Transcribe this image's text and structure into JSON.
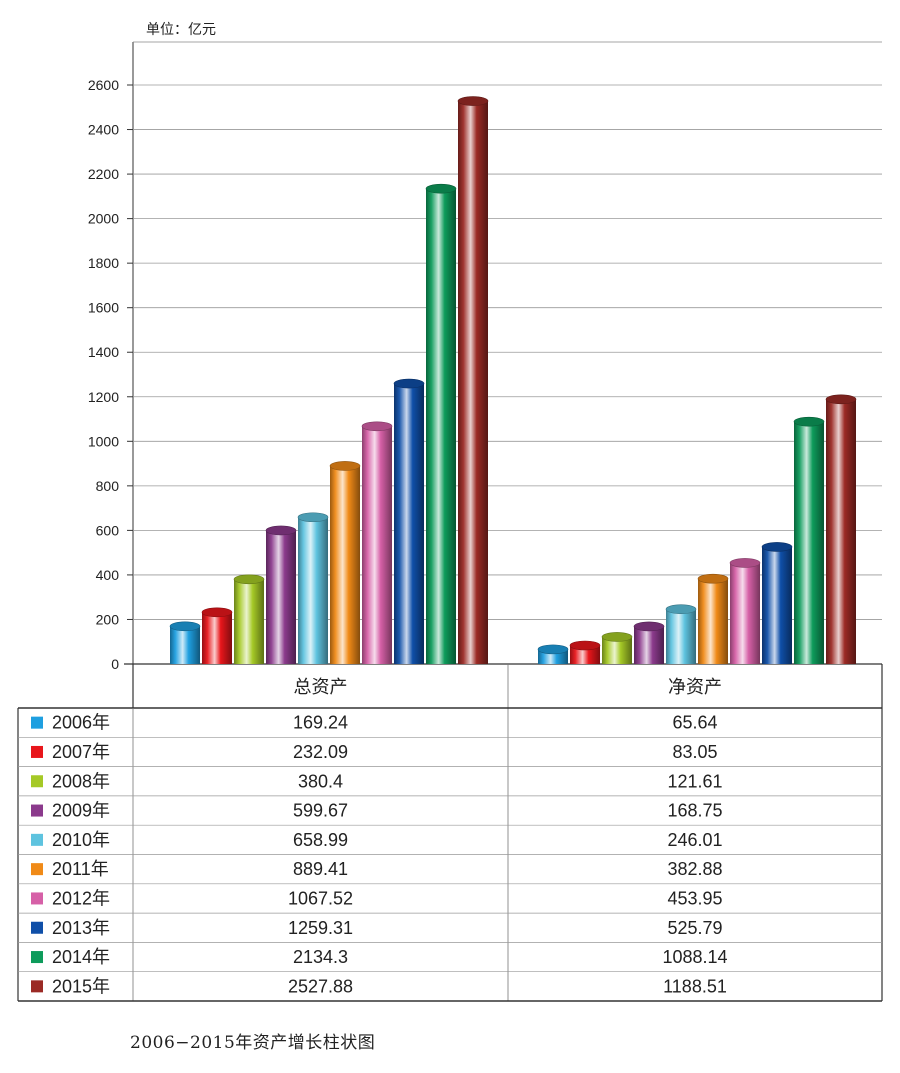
{
  "chart_data": {
    "type": "bar",
    "unit_label": "单位：亿元",
    "categories": [
      "总资产",
      "净资产"
    ],
    "yticks": [
      0,
      200,
      400,
      600,
      800,
      1000,
      1200,
      1400,
      1600,
      1800,
      2000,
      2200,
      2400,
      2600
    ],
    "ylim": [
      0,
      2600
    ],
    "grid": true,
    "legend_placement": "table-left",
    "series": [
      {
        "name": "2006年",
        "color": "#1e9fe0",
        "values": [
          169.24,
          65.64
        ],
        "labels": [
          "169.24",
          "65.64"
        ]
      },
      {
        "name": "2007年",
        "color": "#e8161b",
        "values": [
          232.09,
          83.05
        ],
        "labels": [
          "232.09",
          "83.05"
        ]
      },
      {
        "name": "2008年",
        "color": "#a5c926",
        "values": [
          380.4,
          121.61
        ],
        "labels": [
          "380.4",
          "121.61"
        ]
      },
      {
        "name": "2009年",
        "color": "#8b3a8c",
        "values": [
          599.67,
          168.75
        ],
        "labels": [
          "599.67",
          "168.75"
        ]
      },
      {
        "name": "2010年",
        "color": "#5ec3df",
        "values": [
          658.99,
          246.01
        ],
        "labels": [
          "658.99",
          "246.01"
        ]
      },
      {
        "name": "2011年",
        "color": "#f08a17",
        "values": [
          889.41,
          382.88
        ],
        "labels": [
          "889.41",
          "382.88"
        ]
      },
      {
        "name": "2012年",
        "color": "#d660a7",
        "values": [
          1067.52,
          453.95
        ],
        "labels": [
          "1067.52",
          "453.95"
        ]
      },
      {
        "name": "2013年",
        "color": "#0f4fa8",
        "values": [
          1259.31,
          525.79
        ],
        "labels": [
          "1259.31",
          "525.79"
        ]
      },
      {
        "name": "2014年",
        "color": "#0d9b5b",
        "values": [
          2134.3,
          1088.14
        ],
        "labels": [
          "2134.3",
          "1088.14"
        ]
      },
      {
        "name": "2015年",
        "color": "#9b2a25",
        "values": [
          2527.88,
          1188.51
        ],
        "labels": [
          "2527.88",
          "1188.51"
        ]
      }
    ]
  },
  "caption": "2006−2015年资产增长柱状图"
}
